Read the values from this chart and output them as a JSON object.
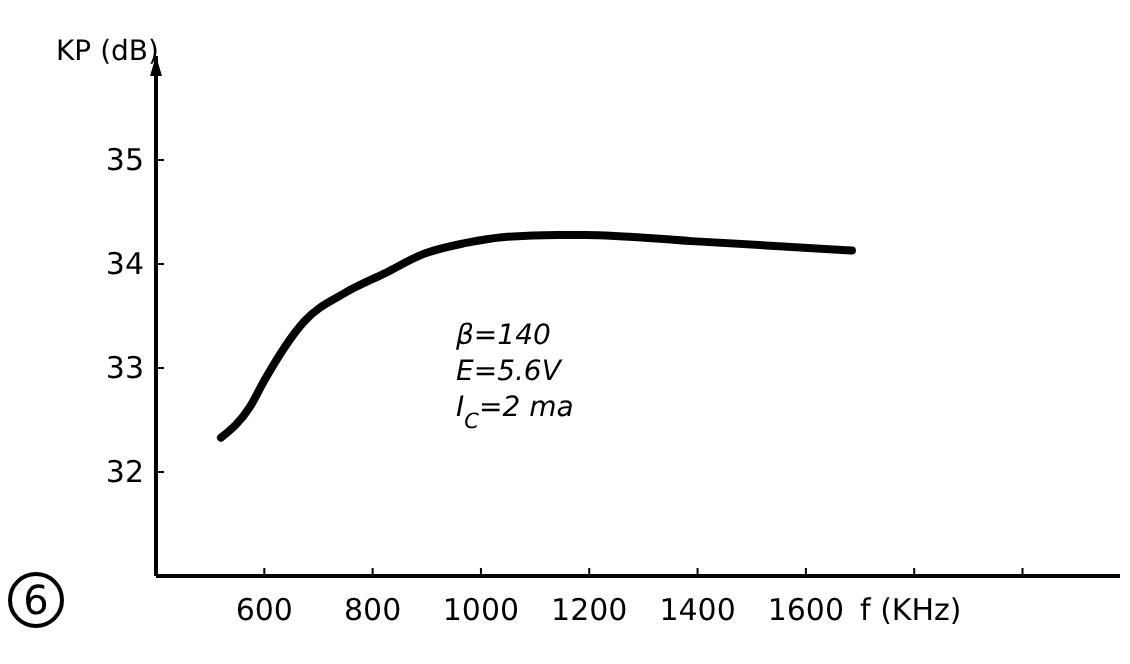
{
  "chart_data": {
    "type": "line",
    "ylabel": "KP (dB)",
    "xlabel": "f (KHz)",
    "x": [
      520,
      574,
      600,
      674,
      748,
      822,
      896,
      970,
      1044,
      1141,
      1192,
      1389,
      1685
    ],
    "values": [
      32.33,
      32.63,
      32.88,
      33.45,
      33.72,
      33.91,
      34.1,
      34.2,
      34.26,
      34.28,
      34.28,
      34.22,
      34.13
    ],
    "color": "#000000",
    "line_style": "solid",
    "marker": "none",
    "xlim": [
      400,
      2180
    ],
    "ylim": [
      31,
      36
    ],
    "xticks": [
      600,
      800,
      1000,
      1200,
      1400,
      1600,
      {
        "value": 1800,
        "label": null
      },
      {
        "value": 2000,
        "label": null
      }
    ],
    "yticks": [
      32,
      33,
      34,
      35
    ],
    "annotations": [
      "β=140",
      "E=5.6V",
      "I$_{C}$=2 ma",
      "6"
    ]
  }
}
